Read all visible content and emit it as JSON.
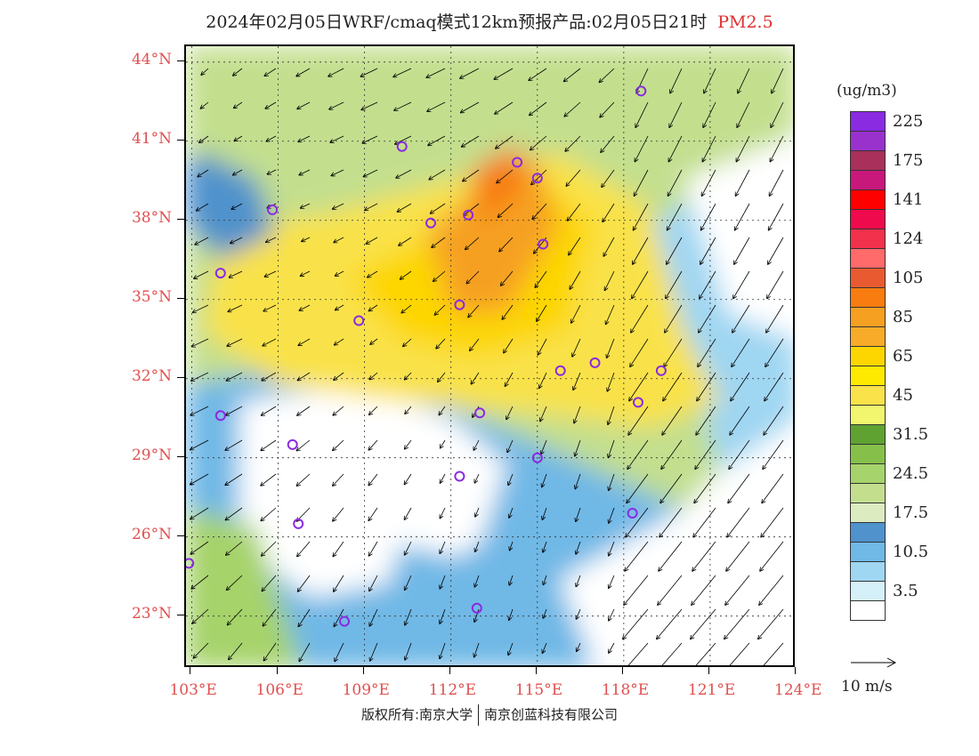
{
  "title": {
    "text": "2024年02月05日WRF/cmaq模式12km预报产品:02月05日21时",
    "pollutant": "PM2.5"
  },
  "map": {
    "lat_labels": [
      "44°N",
      "41°N",
      "38°N",
      "35°N",
      "32°N",
      "29°N",
      "26°N",
      "23°N"
    ],
    "lon_labels": [
      "103°E",
      "106°E",
      "109°E",
      "112°E",
      "115°E",
      "118°E",
      "121°E",
      "124°E"
    ],
    "lat_values": [
      44,
      41,
      38,
      35,
      32,
      29,
      26,
      23
    ],
    "lon_values": [
      103,
      106,
      109,
      112,
      115,
      118,
      121,
      124
    ],
    "lat_range": [
      21.0,
      44.6
    ],
    "lon_range": [
      102.8,
      124.0
    ],
    "stations": [
      {
        "lon": 118.6,
        "lat": 42.9
      },
      {
        "lon": 110.3,
        "lat": 40.8
      },
      {
        "lon": 114.3,
        "lat": 40.2
      },
      {
        "lon": 115.0,
        "lat": 39.6
      },
      {
        "lon": 105.8,
        "lat": 38.4
      },
      {
        "lon": 111.3,
        "lat": 37.9
      },
      {
        "lon": 112.6,
        "lat": 38.2
      },
      {
        "lon": 115.2,
        "lat": 37.1
      },
      {
        "lon": 104.0,
        "lat": 36.0
      },
      {
        "lon": 112.3,
        "lat": 34.8
      },
      {
        "lon": 108.8,
        "lat": 34.2
      },
      {
        "lon": 117.0,
        "lat": 32.6
      },
      {
        "lon": 115.8,
        "lat": 32.3
      },
      {
        "lon": 119.3,
        "lat": 32.3
      },
      {
        "lon": 118.5,
        "lat": 31.1
      },
      {
        "lon": 104.0,
        "lat": 30.6
      },
      {
        "lon": 113.0,
        "lat": 30.7
      },
      {
        "lon": 106.5,
        "lat": 29.5
      },
      {
        "lon": 115.0,
        "lat": 29.0
      },
      {
        "lon": 112.3,
        "lat": 28.3
      },
      {
        "lon": 106.7,
        "lat": 26.5
      },
      {
        "lon": 118.3,
        "lat": 26.9
      },
      {
        "lon": 102.9,
        "lat": 25.0
      },
      {
        "lon": 108.3,
        "lat": 22.8
      },
      {
        "lon": 112.9,
        "lat": 23.3
      }
    ]
  },
  "colorbar": {
    "unit": "(ug/m3)",
    "colors": [
      "#ffffff",
      "#d6f0fa",
      "#9fd6f2",
      "#70b8e6",
      "#4f92cc",
      "#dcebc0",
      "#c3df8e",
      "#a6d36b",
      "#86c04a",
      "#5fa232",
      "#f2f56e",
      "#f9e24a",
      "#fee900",
      "#fdd600",
      "#f8ab28",
      "#f6a022",
      "#f87c10",
      "#e95a30",
      "#ff6a6a",
      "#f2314c",
      "#ee0a4c",
      "#ff0000",
      "#c8187c",
      "#a8305a",
      "#9932cc",
      "#8a2be2"
    ],
    "labels": [
      "3.5",
      "10.5",
      "17.5",
      "24.5",
      "31.5",
      "45",
      "65",
      "85",
      "105",
      "124",
      "141",
      "175",
      "225"
    ]
  },
  "reference_vector": {
    "label": "10 m/s"
  },
  "copyright": {
    "left": "版权所有:南京大学",
    "right": "南京创蓝科技有限公司"
  }
}
